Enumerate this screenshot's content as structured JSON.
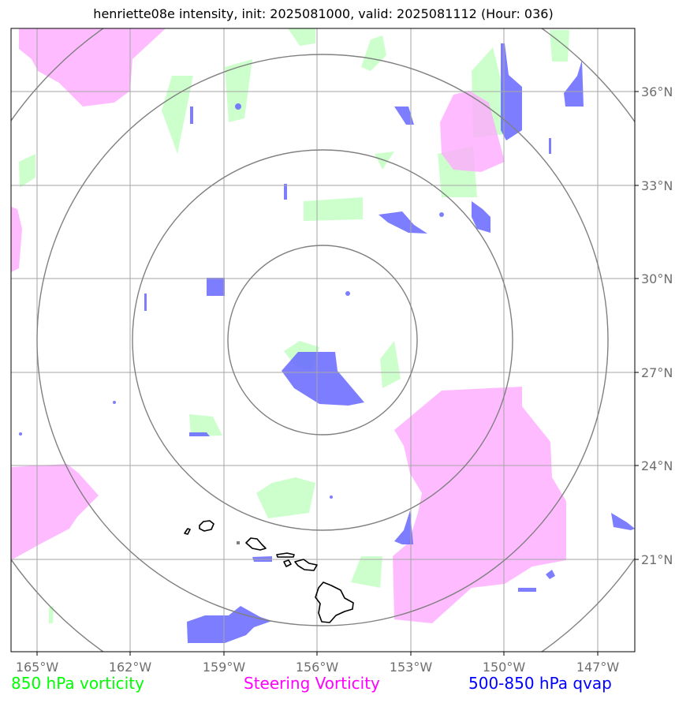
{
  "title": "henriette08e intensity, init: 2025081000, valid: 2025081112 (Hour: 036)",
  "map": {
    "lon_ticks": [
      "165°W",
      "162°W",
      "159°W",
      "156°W",
      "153°W",
      "150°W",
      "147°W"
    ],
    "lat_ticks": [
      "36°N",
      "33°N",
      "30°N",
      "27°N",
      "24°N",
      "21°N"
    ],
    "lon_range": [
      -165.8,
      -145.8
    ],
    "lat_range": [
      17.9,
      37.9
    ],
    "range_ring_center": {
      "lon": -155.9,
      "lat": 28.1
    },
    "colors": {
      "vorticity_850": "#ccffcc",
      "steering_vorticity": "#ffaaff",
      "qvap": "#6666ff",
      "grid": "#a6a6a6",
      "rings": "#808080",
      "coast": "#000000"
    }
  },
  "legend": {
    "vorticity": "850 hPa vorticity",
    "steering": "Steering Vorticity",
    "qvap": "500-850 hPa qvap"
  }
}
